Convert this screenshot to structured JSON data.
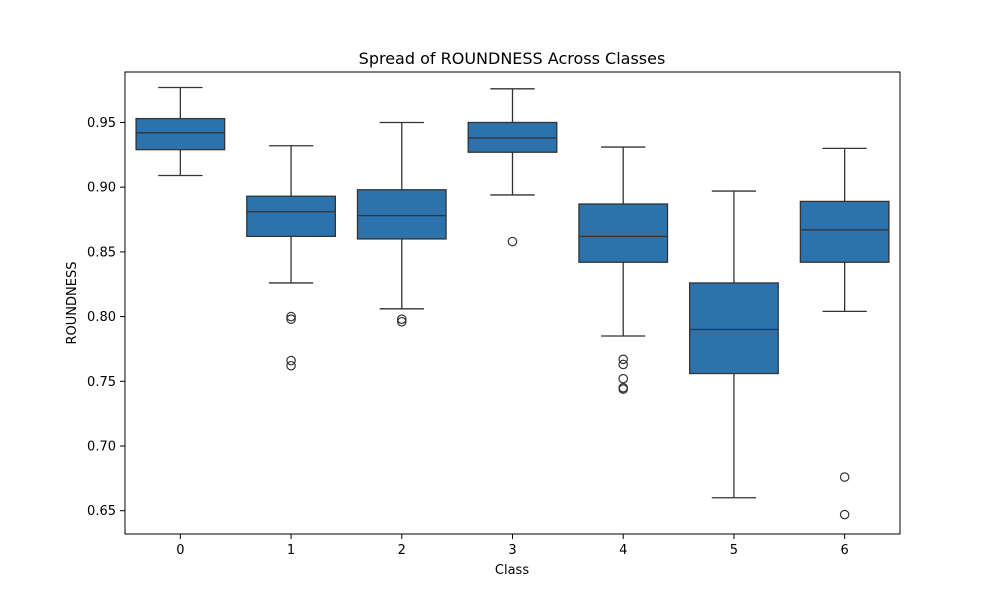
{
  "chart_data": {
    "type": "box",
    "title": "Spread of ROUNDNESS Across Classes",
    "xlabel": "Class",
    "ylabel": "ROUNDNESS",
    "ylim": [
      0.632,
      0.989
    ],
    "yticks": [
      "0.65",
      "0.70",
      "0.75",
      "0.80",
      "0.85",
      "0.90",
      "0.95"
    ],
    "categories": [
      "0",
      "1",
      "2",
      "3",
      "4",
      "5",
      "6"
    ],
    "grid": false,
    "box_color": "#2c73ad",
    "line_color": "#333333",
    "boxes": [
      {
        "class": "0",
        "whisker_low": 0.909,
        "q1": 0.929,
        "median": 0.942,
        "q3": 0.953,
        "whisker_high": 0.977,
        "outliers": []
      },
      {
        "class": "1",
        "whisker_low": 0.826,
        "q1": 0.862,
        "median": 0.881,
        "q3": 0.893,
        "whisker_high": 0.932,
        "outliers": [
          0.8,
          0.798,
          0.766,
          0.762
        ]
      },
      {
        "class": "2",
        "whisker_low": 0.806,
        "q1": 0.86,
        "median": 0.878,
        "q3": 0.898,
        "whisker_high": 0.95,
        "outliers": [
          0.798,
          0.796
        ]
      },
      {
        "class": "3",
        "whisker_low": 0.894,
        "q1": 0.927,
        "median": 0.938,
        "q3": 0.95,
        "whisker_high": 0.976,
        "outliers": [
          0.858
        ]
      },
      {
        "class": "4",
        "whisker_low": 0.785,
        "q1": 0.842,
        "median": 0.862,
        "q3": 0.887,
        "whisker_high": 0.931,
        "outliers": [
          0.767,
          0.763,
          0.752,
          0.745,
          0.744
        ]
      },
      {
        "class": "5",
        "whisker_low": 0.66,
        "q1": 0.756,
        "median": 0.79,
        "q3": 0.826,
        "whisker_high": 0.897,
        "outliers": []
      },
      {
        "class": "6",
        "whisker_low": 0.804,
        "q1": 0.842,
        "median": 0.867,
        "q3": 0.889,
        "whisker_high": 0.93,
        "outliers": [
          0.676,
          0.647
        ]
      }
    ]
  }
}
